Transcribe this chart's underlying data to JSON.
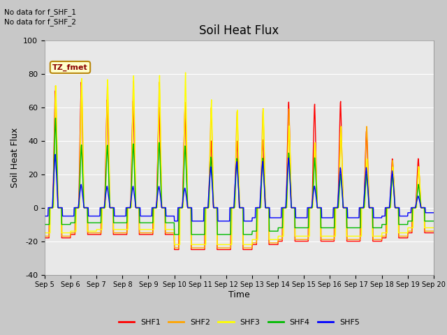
{
  "title": "Soil Heat Flux",
  "ylabel": "Soil Heat Flux",
  "xlabel": "Time",
  "ylim": [
    -40,
    100
  ],
  "note1": "No data for f_SHF_1",
  "note2": "No data for f_SHF_2",
  "legend_label": "TZ_fmet",
  "series_labels": [
    "SHF1",
    "SHF2",
    "SHF3",
    "SHF4",
    "SHF5"
  ],
  "series_colors": [
    "#ff0000",
    "#ffa500",
    "#ffff00",
    "#00bb00",
    "#0000ff"
  ],
  "xtick_labels": [
    "Sep 5",
    "Sep 6",
    "Sep 7",
    "Sep 8",
    "Sep 9",
    "Sep 10",
    "Sep 11",
    "Sep 12",
    "Sep 13",
    "Sep 14",
    "Sep 15",
    "Sep 16",
    "Sep 17",
    "Sep 18",
    "Sep 19",
    "Sep 20"
  ],
  "ytick_values": [
    -40,
    -20,
    0,
    20,
    40,
    60,
    80,
    100
  ],
  "fig_bg_color": "#c8c8c8",
  "plot_bg_color": "#e8e8e8",
  "grid_color": "#ffffff"
}
